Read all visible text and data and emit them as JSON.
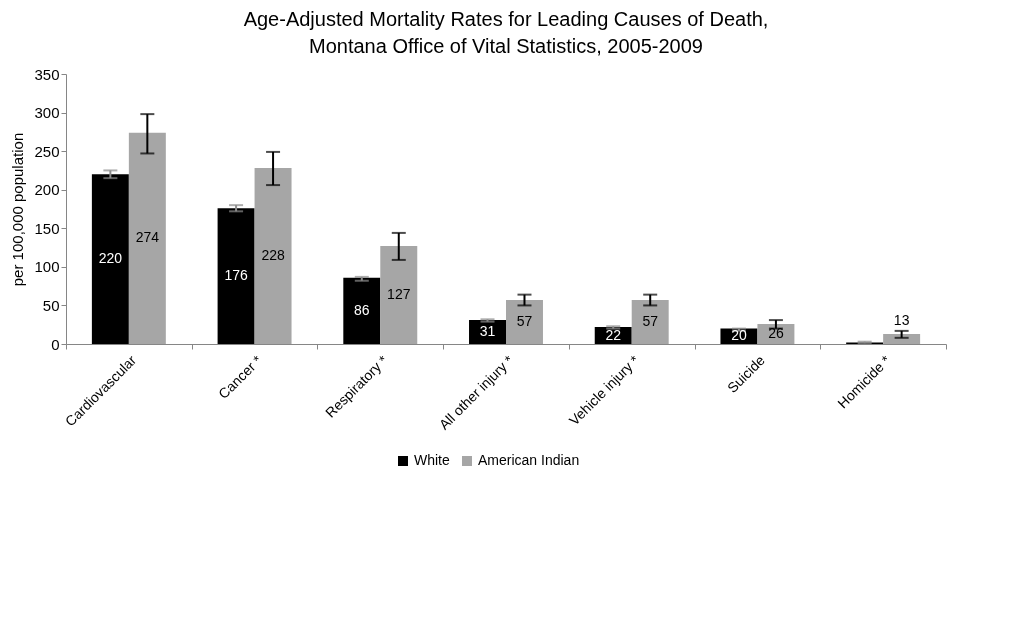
{
  "chart_data": {
    "type": "bar",
    "title": "Age-Adjusted Mortality Rates for Leading Causes of Death, Montana Office of Vital Statistics, 2005-2009",
    "ylabel": "per 100,000 population",
    "categories": [
      "Cardiovascular",
      "Cancer *",
      "Respiratory *",
      "All other injury *",
      "Vehicle injury *",
      "Suicide",
      "Homicide *"
    ],
    "series": [
      {
        "name": "White",
        "color": "#000000",
        "values": [
          220,
          176,
          86,
          31,
          22,
          20,
          2
        ],
        "errors": [
          [
            215,
            225
          ],
          [
            172,
            180
          ],
          [
            82,
            87
          ],
          [
            29,
            32
          ],
          [
            20,
            23
          ],
          [
            17,
            20
          ],
          [
            1,
            3
          ]
        ],
        "value_labels": [
          "220",
          "176",
          "86",
          "31",
          "22",
          "20",
          null
        ]
      },
      {
        "name": "American Indian",
        "color": "#a6a6a6",
        "values": [
          274,
          228,
          127,
          57,
          57,
          26,
          13
        ],
        "errors": [
          [
            247,
            298
          ],
          [
            206,
            249
          ],
          [
            109,
            144
          ],
          [
            50,
            64
          ],
          [
            50,
            64
          ],
          [
            20,
            31
          ],
          [
            8,
            17
          ]
        ],
        "value_labels": [
          "274",
          "228",
          "127",
          "57",
          "57",
          "26",
          "13"
        ]
      }
    ],
    "ylim": [
      0,
      350
    ],
    "yticks": [
      0,
      50,
      100,
      150,
      200,
      250,
      300,
      350
    ],
    "grid": false,
    "legend": "bottom"
  }
}
